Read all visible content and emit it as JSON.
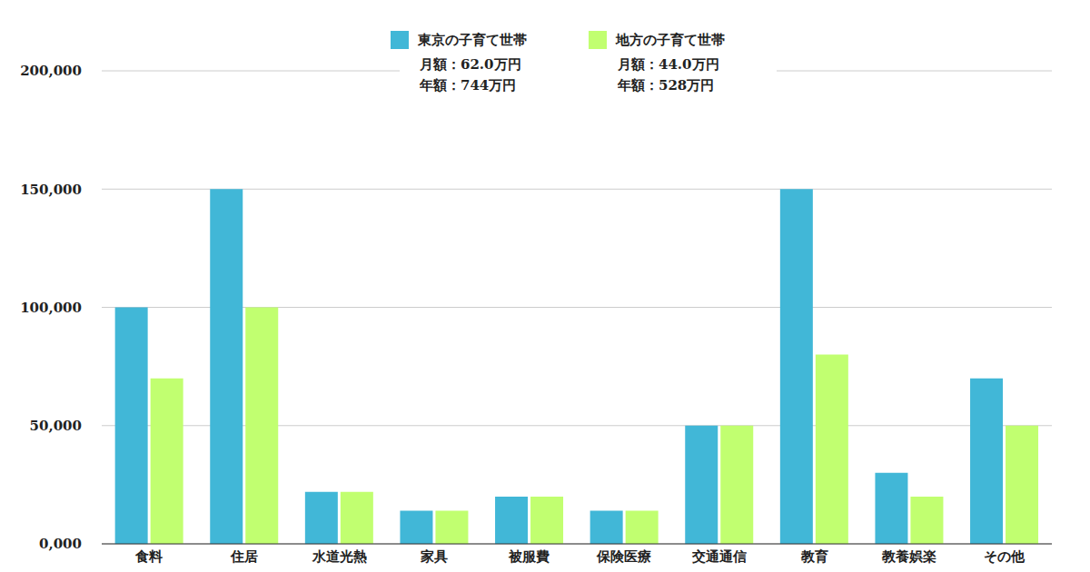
{
  "chart_data": {
    "type": "bar",
    "categories": [
      "食料",
      "住居",
      "水道光熱",
      "家具",
      "被服費",
      "保険医療",
      "交通通信",
      "教育",
      "教養娯楽",
      "その他"
    ],
    "series": [
      {
        "name": "東京の子育て世帯",
        "color": "#41b7d7",
        "values": [
          100000,
          150000,
          22000,
          14000,
          20000,
          14000,
          50000,
          150000,
          30000,
          70000
        ]
      },
      {
        "name": "地方の子育て世帯",
        "color": "#c1ff70",
        "values": [
          70000,
          100000,
          22000,
          14000,
          20000,
          14000,
          50000,
          80000,
          20000,
          50000
        ]
      }
    ],
    "annotations": [
      "月額：62.0万円",
      "年額：744万円",
      "月額：44.0万円",
      "年額：528万円"
    ],
    "ylim": [
      0,
      200000
    ],
    "yticks": [
      {
        "value": 0,
        "label": "0,000"
      },
      {
        "value": 50000,
        "label": "50,000"
      },
      {
        "value": 100000,
        "label": "100,000"
      },
      {
        "value": 150000,
        "label": "150,000"
      },
      {
        "value": 200000,
        "label": "200,000"
      }
    ],
    "grid": true,
    "legend": "top"
  }
}
